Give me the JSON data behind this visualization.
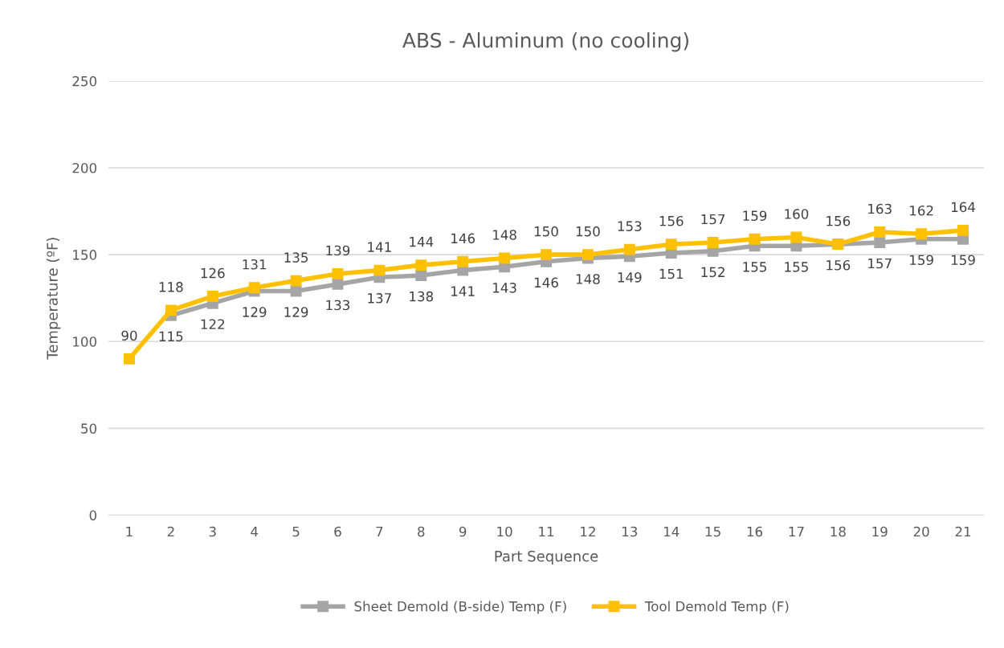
{
  "chart_data": {
    "type": "line",
    "title": "ABS - Aluminum (no cooling)",
    "xlabel": "Part Sequence",
    "ylabel": "Temperature (ºF)",
    "categories": [
      "1",
      "2",
      "3",
      "4",
      "5",
      "6",
      "7",
      "8",
      "9",
      "10",
      "11",
      "12",
      "13",
      "14",
      "15",
      "16",
      "17",
      "18",
      "19",
      "20",
      "21"
    ],
    "series": [
      {
        "name": "Sheet Demold (B-side) Temp (F)",
        "color": "#a5a5a5",
        "values": [
          null,
          115,
          122,
          129,
          129,
          133,
          137,
          138,
          141,
          143,
          146,
          148,
          149,
          151,
          152,
          155,
          155,
          156,
          157,
          159,
          159
        ]
      },
      {
        "name": "Tool Demold Temp (F)",
        "color": "#ffc000",
        "values": [
          90,
          118,
          126,
          131,
          135,
          139,
          141,
          144,
          146,
          148,
          150,
          150,
          153,
          156,
          157,
          159,
          160,
          156,
          163,
          162,
          164
        ]
      }
    ],
    "ylim": [
      0,
      250
    ],
    "yticks": [
      0,
      50,
      100,
      150,
      200,
      250
    ],
    "grid": "y",
    "legend": "bottom",
    "marker": "square",
    "line_style": "solid",
    "data_labels": true
  }
}
